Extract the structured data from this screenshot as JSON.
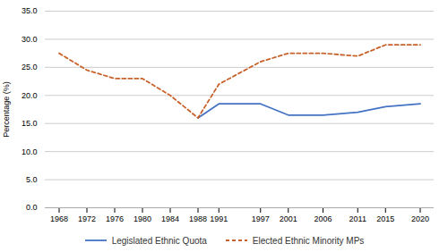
{
  "chart_data": {
    "type": "line",
    "x": [
      1968,
      1972,
      1976,
      1980,
      1984,
      1988,
      1991,
      1997,
      2001,
      2006,
      2011,
      2015,
      2020
    ],
    "series": [
      {
        "name": "Legislated Ethnic Quota",
        "color": "#4472C4",
        "line_style": "solid",
        "values": [
          null,
          null,
          null,
          null,
          null,
          16.0,
          18.5,
          18.5,
          16.5,
          16.5,
          17.0,
          18.0,
          18.5
        ]
      },
      {
        "name": "Elected Ethnic Minority MPs",
        "color": "#C8622A",
        "line_style": "dashed",
        "values": [
          27.5,
          24.5,
          23.0,
          23.0,
          20.0,
          16.0,
          22.0,
          26.0,
          27.5,
          27.5,
          27.0,
          29.0,
          29.0
        ]
      }
    ],
    "xlim": [
      1966,
      2022
    ],
    "xticks": [
      1968,
      1972,
      1976,
      1980,
      1984,
      1988,
      1991,
      1997,
      2001,
      2006,
      2011,
      2015,
      2020
    ],
    "ylim": [
      0.0,
      35.0
    ],
    "yticks": [
      {
        "value": 0.0,
        "label": "0.0"
      },
      {
        "value": 5.0,
        "label": "5.0"
      },
      {
        "value": 10.0,
        "label": "10.0"
      },
      {
        "value": 15.0,
        "label": "15.0"
      },
      {
        "value": 20.0,
        "label": "20.0"
      },
      {
        "value": 25.0,
        "label": "25.0"
      },
      {
        "value": 30.0,
        "label": "30.0"
      },
      {
        "value": 35.0,
        "label": "35.0"
      }
    ],
    "ylabel": "Percentage (%)",
    "grid": "y",
    "legend": "bottom"
  }
}
